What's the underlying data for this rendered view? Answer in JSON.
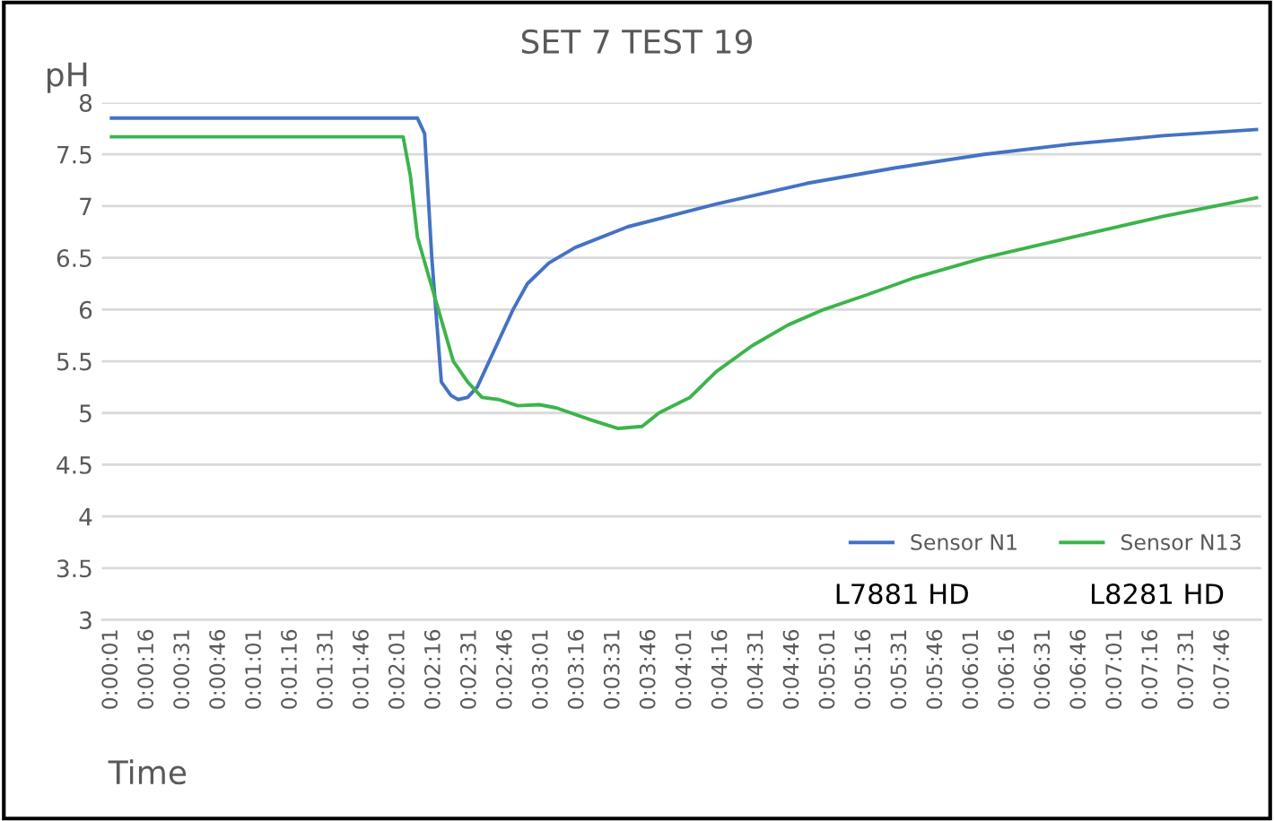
{
  "chart_data": {
    "type": "line",
    "title": "SET 7 TEST 19",
    "xlabel": "Time",
    "ylabel": "pH",
    "annotations": [
      "L7881 HD",
      "L8281 HD"
    ],
    "series": [
      {
        "name": "Sensor N1",
        "color": "#4472c4",
        "x": [
          1,
          40,
          80,
          129,
          132,
          135,
          139,
          143,
          146,
          150,
          154,
          157,
          163,
          169,
          175,
          184,
          195,
          217,
          254,
          292,
          329,
          366,
          403,
          441,
          480
        ],
        "values": [
          7.85,
          7.85,
          7.85,
          7.85,
          7.7,
          6.5,
          5.3,
          5.17,
          5.13,
          5.15,
          5.25,
          5.4,
          5.7,
          6.0,
          6.25,
          6.45,
          6.6,
          6.8,
          7.02,
          7.22,
          7.37,
          7.5,
          7.6,
          7.68,
          7.74
        ]
      },
      {
        "name": "Sensor N13",
        "color": "#3cb44b",
        "x": [
          1,
          40,
          80,
          123,
          126,
          129,
          134,
          139,
          144,
          150,
          156,
          163,
          171,
          180,
          187,
          202,
          213,
          223,
          230,
          243,
          254,
          269,
          284,
          299,
          318,
          336,
          366,
          403,
          441,
          480
        ],
        "values": [
          7.67,
          7.67,
          7.67,
          7.67,
          7.3,
          6.7,
          6.3,
          5.9,
          5.5,
          5.3,
          5.15,
          5.13,
          5.07,
          5.08,
          5.05,
          4.93,
          4.85,
          4.87,
          5.0,
          5.15,
          5.4,
          5.65,
          5.85,
          6.0,
          6.15,
          6.3,
          6.5,
          6.7,
          6.9,
          7.08
        ]
      }
    ],
    "xlim": [
      -3,
      482
    ],
    "ylim": [
      3,
      8
    ],
    "xticks": [
      {
        "value": 1,
        "label": "0:00:01"
      },
      {
        "value": 16,
        "label": "0:00:16"
      },
      {
        "value": 31,
        "label": "0:00:31"
      },
      {
        "value": 46,
        "label": "0:00:46"
      },
      {
        "value": 61,
        "label": "0:01:01"
      },
      {
        "value": 76,
        "label": "0:01:16"
      },
      {
        "value": 91,
        "label": "0:01:31"
      },
      {
        "value": 106,
        "label": "0:01:46"
      },
      {
        "value": 121,
        "label": "0:02:01"
      },
      {
        "value": 136,
        "label": "0:02:16"
      },
      {
        "value": 151,
        "label": "0:02:31"
      },
      {
        "value": 166,
        "label": "0:02:46"
      },
      {
        "value": 181,
        "label": "0:03:01"
      },
      {
        "value": 196,
        "label": "0:03:16"
      },
      {
        "value": 211,
        "label": "0:03:31"
      },
      {
        "value": 226,
        "label": "0:03:46"
      },
      {
        "value": 241,
        "label": "0:04:01"
      },
      {
        "value": 256,
        "label": "0:04:16"
      },
      {
        "value": 271,
        "label": "0:04:31"
      },
      {
        "value": 286,
        "label": "0:04:46"
      },
      {
        "value": 301,
        "label": "0:05:01"
      },
      {
        "value": 316,
        "label": "0:05:16"
      },
      {
        "value": 331,
        "label": "0:05:31"
      },
      {
        "value": 346,
        "label": "0:05:46"
      },
      {
        "value": 361,
        "label": "0:06:01"
      },
      {
        "value": 376,
        "label": "0:06:16"
      },
      {
        "value": 391,
        "label": "0:06:31"
      },
      {
        "value": 406,
        "label": "0:06:46"
      },
      {
        "value": 421,
        "label": "0:07:01"
      },
      {
        "value": 436,
        "label": "0:07:16"
      },
      {
        "value": 451,
        "label": "0:07:31"
      },
      {
        "value": 466,
        "label": "0:07:46"
      }
    ],
    "yticks": [
      3,
      3.5,
      4,
      4.5,
      5,
      5.5,
      6,
      6.5,
      7,
      7.5,
      8
    ],
    "grid": "y",
    "legend": "bottom right",
    "marker": "none",
    "line_style": "solid"
  }
}
